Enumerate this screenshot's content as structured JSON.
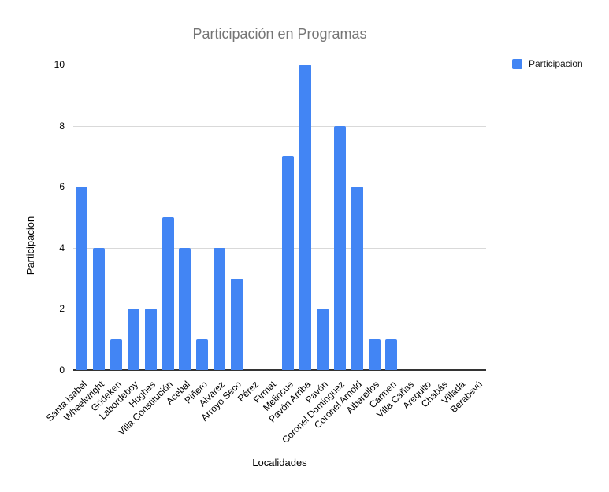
{
  "title": "Participación en Programas",
  "legend": {
    "label": "Participacion",
    "swatch_color": "#4285F4",
    "position": "top-right"
  },
  "colors": {
    "bar": "#4285F4",
    "title_text": "#757575",
    "axis_text": "#000000",
    "gridline": "#d9d9d9",
    "baseline": "#333333",
    "background": "#ffffff"
  },
  "chart_data": {
    "type": "bar",
    "title": "Participación en Programas",
    "xlabel": "Localidades",
    "ylabel": "Participacion",
    "legend_entries": [
      "Participacion"
    ],
    "legend_position": "right",
    "grid": true,
    "ylim": [
      0,
      10
    ],
    "yticks": [
      0,
      2,
      4,
      6,
      8,
      10
    ],
    "bar_color": "#4285F4",
    "categories": [
      "Santa Isabel",
      "Wheelwright",
      "Gödeken",
      "Labordeboy",
      "Hughes",
      "Villa Constitución",
      "Acebal",
      "Piñero",
      "Alvarez",
      "Arroyo Seco",
      "Pérez",
      "Firmat",
      "Melincue",
      "Pavón Arriba",
      "Pavón",
      "Coronel Dominguez",
      "Coronel Arnold",
      "Albarellos",
      "Carmen",
      "Villa Cañas",
      "Arequito",
      "Chabás",
      "Villada",
      "Berabevú"
    ],
    "series": [
      {
        "name": "Participacion",
        "values": [
          6,
          4,
          1,
          2,
          2,
          5,
          4,
          1,
          4,
          3,
          0,
          0,
          7,
          10,
          2,
          8,
          6,
          1,
          1,
          0,
          0,
          0,
          0,
          0
        ]
      }
    ]
  }
}
